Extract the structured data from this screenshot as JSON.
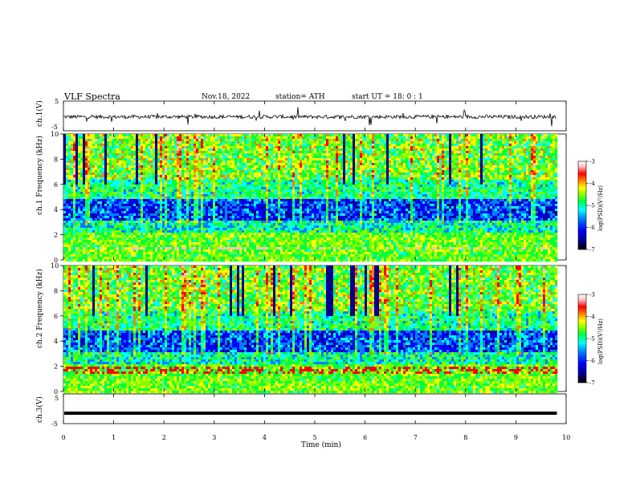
{
  "header": {
    "title": "VLF  Spectra",
    "date": "Nov.18, 2022",
    "station": "station= ATH",
    "start": "start  UT  =   18: 0  : 1"
  },
  "chart_data": [
    {
      "type": "line",
      "panel": "ch1-waveform",
      "ylabel": "ch.1(V)",
      "ylim": [
        -5,
        5
      ],
      "yticks": [
        "5",
        "-5"
      ],
      "description_values": {
        "baseline": -0.3,
        "noise_amplitude": 0.6
      },
      "xlim": [
        0,
        9.8
      ]
    },
    {
      "type": "heatmap",
      "panel": "ch1-spectrogram",
      "ylabel": "ch.1  Frequency  (kHz)",
      "ylim": [
        0,
        10
      ],
      "yticks": [
        "0",
        "2",
        "4",
        "6",
        "8",
        "10"
      ],
      "xlim": [
        0,
        9.8
      ],
      "colorbar": {
        "label": "log(PSD)(V²/Hz)",
        "range": [
          -7,
          -3
        ],
        "ticks": [
          "-3",
          "-4",
          "-5",
          "-6",
          "-7"
        ]
      }
    },
    {
      "type": "heatmap",
      "panel": "ch2-spectrogram",
      "ylabel": "ch.2  Frequency  (kHz)",
      "ylim": [
        0,
        10
      ],
      "yticks": [
        "0",
        "2",
        "4",
        "6",
        "8",
        "10"
      ],
      "xlim": [
        0,
        9.8
      ],
      "colorbar": {
        "label": "log(PSD)(V²/Hz)",
        "range": [
          -7,
          -3
        ],
        "ticks": [
          "-3",
          "-4",
          "-5",
          "-6",
          "-7"
        ]
      }
    },
    {
      "type": "line",
      "panel": "ch3-waveform",
      "ylabel": "ch.3(V)",
      "ylim": [
        -5,
        5
      ],
      "yticks": [
        "5",
        "-5"
      ],
      "xlim": [
        0,
        9.8
      ],
      "values_constant": -1.5
    }
  ],
  "xaxis": {
    "label": "Time  (min)",
    "ticks": [
      "0",
      "1",
      "2",
      "3",
      "4",
      "5",
      "6",
      "7",
      "8",
      "9",
      "10"
    ],
    "range": [
      0,
      10
    ]
  },
  "colors": {
    "scale": [
      "#000000",
      "#00008f",
      "#0000ff",
      "#0080ff",
      "#00ffff",
      "#00ff40",
      "#80ff00",
      "#ffff00",
      "#ff8000",
      "#ff0000",
      "#ffc0c0",
      "#ffffff"
    ]
  }
}
